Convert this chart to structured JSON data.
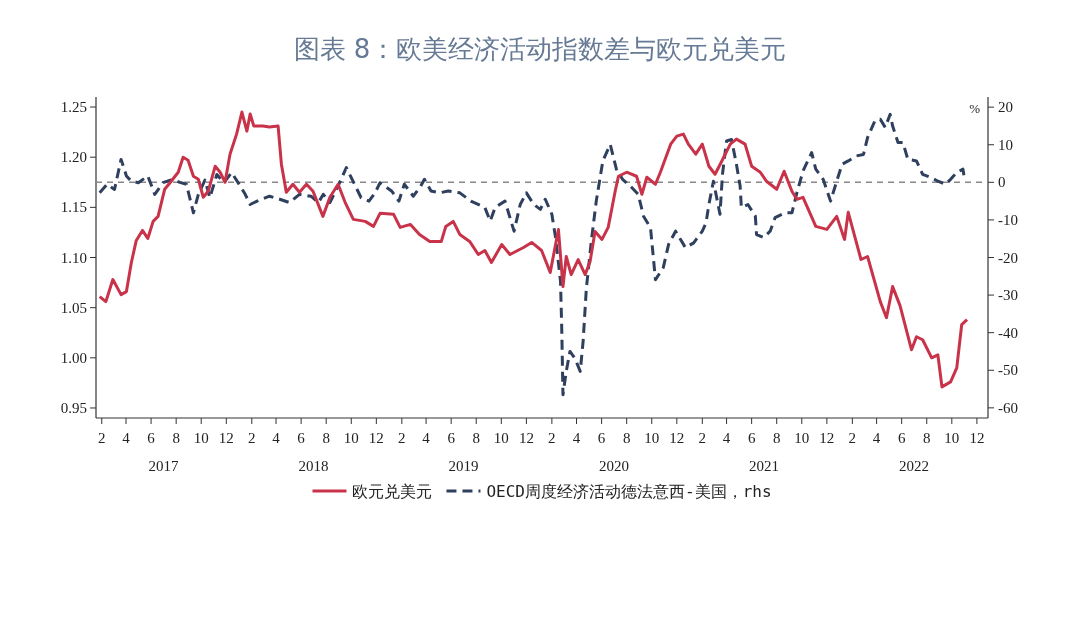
{
  "chart_data": {
    "type": "line",
    "title": "图表 8：欧美经济活动指数差与欧元兑美元",
    "y2label": "%",
    "legend": "bottom",
    "xlim": [
      "2017-01-18",
      "2022-12-28"
    ],
    "ylim": [
      0.94,
      1.26
    ],
    "y2lim": [
      -62.7,
      22.7
    ],
    "yticks": [
      0.95,
      {
        "value": 1.0,
        "label": "1.00"
      },
      1.05,
      {
        "value": 1.1,
        "label": "1.10"
      },
      1.15,
      {
        "value": 1.2,
        "label": "1.20"
      },
      1.25
    ],
    "y2ticks": [
      -60,
      -50,
      -40,
      -30,
      -20,
      -10,
      0,
      10,
      20
    ],
    "xticks": [
      {
        "value": "2017-02-01",
        "label": "2"
      },
      {
        "value": "2017-04-01",
        "label": "4"
      },
      {
        "value": "2017-06-01",
        "label": "6"
      },
      {
        "value": "2017-08-01",
        "label": "8"
      },
      {
        "value": "2017-10-01",
        "label": "10"
      },
      {
        "value": "2017-12-01",
        "label": "12"
      },
      {
        "value": "2018-02-01",
        "label": "2"
      },
      {
        "value": "2018-04-01",
        "label": "4"
      },
      {
        "value": "2018-06-01",
        "label": "6"
      },
      {
        "value": "2018-08-01",
        "label": "8"
      },
      {
        "value": "2018-10-01",
        "label": "10"
      },
      {
        "value": "2018-12-01",
        "label": "12"
      },
      {
        "value": "2019-02-01",
        "label": "2"
      },
      {
        "value": "2019-04-01",
        "label": "4"
      },
      {
        "value": "2019-06-01",
        "label": "6"
      },
      {
        "value": "2019-08-01",
        "label": "8"
      },
      {
        "value": "2019-10-01",
        "label": "10"
      },
      {
        "value": "2019-12-01",
        "label": "12"
      },
      {
        "value": "2020-02-01",
        "label": "2"
      },
      {
        "value": "2020-04-01",
        "label": "4"
      },
      {
        "value": "2020-06-01",
        "label": "6"
      },
      {
        "value": "2020-08-01",
        "label": "8"
      },
      {
        "value": "2020-10-01",
        "label": "10"
      },
      {
        "value": "2020-12-01",
        "label": "12"
      },
      {
        "value": "2021-02-01",
        "label": "2"
      },
      {
        "value": "2021-04-01",
        "label": "4"
      },
      {
        "value": "2021-06-01",
        "label": "6"
      },
      {
        "value": "2021-08-01",
        "label": "8"
      },
      {
        "value": "2021-10-01",
        "label": "10"
      },
      {
        "value": "2021-12-01",
        "label": "12"
      },
      {
        "value": "2022-02-01",
        "label": "2"
      },
      {
        "value": "2022-04-01",
        "label": "4"
      },
      {
        "value": "2022-06-01",
        "label": "6"
      },
      {
        "value": "2022-08-01",
        "label": "8"
      },
      {
        "value": "2022-10-01",
        "label": "10"
      },
      {
        "value": "2022-12-01",
        "label": "12"
      }
    ],
    "x2lim": [
      "2017-01-18",
      "2022-12-28"
    ],
    "x2ticks": [
      {
        "value": "2017-07-01",
        "label": "2017"
      },
      {
        "value": "2018-07-01",
        "label": "2018"
      },
      {
        "value": "2019-07-01",
        "label": "2019"
      },
      {
        "value": "2020-07-01",
        "label": "2020"
      },
      {
        "value": "2021-07-01",
        "label": "2021"
      },
      {
        "value": "2022-07-01",
        "label": "2022"
      }
    ],
    "ref_lines": [
      {
        "axis": "y2",
        "value": 0,
        "color": "#888888",
        "line_style": "dashed"
      }
    ],
    "series": [
      {
        "name": "欧元兑美元",
        "color": "#c8334a",
        "line_style": "solid",
        "x": [
          "2017-01-27",
          "2017-02-11",
          "2017-02-28",
          "2017-03-20",
          "2017-04-02",
          "2017-04-14",
          "2017-04-26",
          "2017-05-11",
          "2017-05-24",
          "2017-06-06",
          "2017-06-18",
          "2017-07-04",
          "2017-07-20",
          "2017-08-06",
          "2017-08-18",
          "2017-08-30",
          "2017-09-12",
          "2017-09-24",
          "2017-10-06",
          "2017-10-18",
          "2017-11-04",
          "2017-11-16",
          "2017-11-28",
          "2017-12-10",
          "2017-12-26",
          "2018-01-08",
          "2018-01-20",
          "2018-01-28",
          "2018-02-06",
          "2018-02-28",
          "2018-03-16",
          "2018-04-06",
          "2018-04-14",
          "2018-04-26",
          "2018-05-12",
          "2018-05-28",
          "2018-06-14",
          "2018-06-30",
          "2018-07-24",
          "2018-08-10",
          "2018-08-30",
          "2018-09-16",
          "2018-10-06",
          "2018-11-04",
          "2018-11-24",
          "2018-12-10",
          "2019-01-12",
          "2019-01-28",
          "2019-02-22",
          "2019-03-16",
          "2019-04-10",
          "2019-05-08",
          "2019-05-19",
          "2019-06-06",
          "2019-06-22",
          "2019-07-16",
          "2019-08-06",
          "2019-08-22",
          "2019-09-07",
          "2019-10-02",
          "2019-10-22",
          "2019-11-24",
          "2019-12-14",
          "2020-01-07",
          "2020-01-28",
          "2020-02-17",
          "2020-02-28",
          "2020-03-07",
          "2020-03-19",
          "2020-04-05",
          "2020-04-22",
          "2020-05-04",
          "2020-05-16",
          "2020-06-02",
          "2020-06-17",
          "2020-07-04",
          "2020-07-12",
          "2020-08-01",
          "2020-08-25",
          "2020-09-07",
          "2020-09-19",
          "2020-10-10",
          "2020-10-22",
          "2020-11-16",
          "2020-12-01",
          "2020-12-17",
          "2020-12-29",
          "2021-01-16",
          "2021-02-01",
          "2021-02-17",
          "2021-03-04",
          "2021-03-19",
          "2021-04-10",
          "2021-04-25",
          "2021-05-16",
          "2021-06-01",
          "2021-06-22",
          "2021-07-07",
          "2021-08-01",
          "2021-08-19",
          "2021-09-07",
          "2021-09-19",
          "2021-10-04",
          "2021-11-04",
          "2021-12-01",
          "2021-12-25",
          "2022-01-13",
          "2022-01-22",
          "2022-02-22",
          "2022-03-10",
          "2022-04-10",
          "2022-04-25",
          "2022-05-10",
          "2022-05-28",
          "2022-06-25",
          "2022-07-07",
          "2022-07-22",
          "2022-08-13",
          "2022-08-28",
          "2022-09-07",
          "2022-09-28",
          "2022-10-13",
          "2022-10-25",
          "2022-11-07"
        ],
        "values": [
          1.061,
          1.056,
          1.078,
          1.063,
          1.066,
          1.095,
          1.117,
          1.127,
          1.119,
          1.136,
          1.141,
          1.168,
          1.176,
          1.185,
          1.2,
          1.197,
          1.181,
          1.178,
          1.16,
          1.166,
          1.191,
          1.185,
          1.175,
          1.203,
          1.223,
          1.245,
          1.226,
          1.243,
          1.231,
          1.231,
          1.23,
          1.231,
          1.193,
          1.165,
          1.173,
          1.165,
          1.173,
          1.166,
          1.141,
          1.16,
          1.173,
          1.155,
          1.138,
          1.136,
          1.131,
          1.144,
          1.143,
          1.13,
          1.133,
          1.123,
          1.116,
          1.116,
          1.131,
          1.136,
          1.123,
          1.116,
          1.103,
          1.107,
          1.095,
          1.113,
          1.103,
          1.11,
          1.115,
          1.107,
          1.085,
          1.128,
          1.071,
          1.101,
          1.083,
          1.098,
          1.083,
          1.096,
          1.126,
          1.118,
          1.13,
          1.166,
          1.181,
          1.185,
          1.181,
          1.163,
          1.18,
          1.173,
          1.185,
          1.213,
          1.221,
          1.223,
          1.213,
          1.203,
          1.213,
          1.191,
          1.183,
          1.195,
          1.213,
          1.218,
          1.213,
          1.191,
          1.185,
          1.176,
          1.168,
          1.186,
          1.166,
          1.158,
          1.16,
          1.131,
          1.128,
          1.141,
          1.118,
          1.145,
          1.098,
          1.101,
          1.056,
          1.04,
          1.071,
          1.052,
          1.008,
          1.021,
          1.018,
          1.0,
          1.003,
          0.971,
          0.976,
          0.99,
          1.033,
          1.038
        ]
      },
      {
        "name": "OECD周度经济活动德法意西-美国，rhs",
        "color": "#2f3f5e",
        "line_style": "dashed",
        "axis": "y2",
        "x": [
          "2017-01-27",
          "2017-02-14",
          "2017-03-04",
          "2017-03-20",
          "2017-04-02",
          "2017-04-14",
          "2017-05-01",
          "2017-05-24",
          "2017-06-10",
          "2017-06-30",
          "2017-07-24",
          "2017-08-10",
          "2017-08-26",
          "2017-09-12",
          "2017-09-24",
          "2017-10-10",
          "2017-10-22",
          "2017-11-08",
          "2017-11-25",
          "2017-12-14",
          "2018-01-04",
          "2018-01-16",
          "2018-01-28",
          "2018-02-14",
          "2018-03-16",
          "2018-04-10",
          "2018-05-04",
          "2018-05-28",
          "2018-06-25",
          "2018-07-13",
          "2018-07-25",
          "2018-08-10",
          "2018-09-01",
          "2018-09-19",
          "2018-10-07",
          "2018-10-25",
          "2018-11-13",
          "2018-11-28",
          "2018-12-10",
          "2019-01-07",
          "2019-01-25",
          "2019-02-07",
          "2019-03-01",
          "2019-03-19",
          "2019-03-28",
          "2019-04-13",
          "2019-05-04",
          "2019-05-25",
          "2019-06-22",
          "2019-07-19",
          "2019-08-22",
          "2019-09-04",
          "2019-09-16",
          "2019-10-10",
          "2019-11-01",
          "2019-11-16",
          "2019-12-01",
          "2019-12-19",
          "2020-01-04",
          "2020-01-16",
          "2020-02-01",
          "2020-02-10",
          "2020-02-22",
          "2020-02-25",
          "2020-02-28",
          "2020-03-07",
          "2020-03-16",
          "2020-03-28",
          "2020-04-10",
          "2020-04-17",
          "2020-04-25",
          "2020-05-07",
          "2020-05-19",
          "2020-06-04",
          "2020-06-22",
          "2020-07-07",
          "2020-07-22",
          "2020-08-10",
          "2020-08-29",
          "2020-09-11",
          "2020-09-28",
          "2020-10-10",
          "2020-10-29",
          "2020-11-11",
          "2020-11-28",
          "2020-12-22",
          "2021-01-11",
          "2021-02-01",
          "2021-02-10",
          "2021-02-17",
          "2021-02-28",
          "2021-03-16",
          "2021-03-22",
          "2021-04-01",
          "2021-04-13",
          "2021-04-25",
          "2021-05-04",
          "2021-05-07",
          "2021-05-23",
          "2021-06-10",
          "2021-06-13",
          "2021-06-30",
          "2021-07-16",
          "2021-07-28",
          "2021-08-22",
          "2021-09-07",
          "2021-09-19",
          "2021-10-04",
          "2021-10-25",
          "2021-11-04",
          "2021-11-22",
          "2021-12-10",
          "2021-12-25",
          "2022-01-07",
          "2022-01-22",
          "2022-02-10",
          "2022-02-28",
          "2022-03-10",
          "2022-03-28",
          "2022-04-10",
          "2022-04-22",
          "2022-05-04",
          "2022-05-10",
          "2022-05-23",
          "2022-06-04",
          "2022-06-16",
          "2022-07-07",
          "2022-07-22",
          "2022-08-13",
          "2022-08-28",
          "2022-09-16",
          "2022-09-28",
          "2022-10-13",
          "2022-10-28",
          "2022-11-01"
        ],
        "values": [
          -2.8,
          -0.5,
          -1.9,
          6.1,
          1.7,
          0.3,
          -0.1,
          1.7,
          -3.2,
          -0.1,
          0.8,
          0,
          -0.5,
          -8.1,
          -3.2,
          0.6,
          -4.1,
          2.1,
          -0.1,
          2.6,
          -1,
          -3.2,
          -5.9,
          -5,
          -3.7,
          -4.5,
          -5.4,
          -3.2,
          -3.7,
          -5.4,
          -3.2,
          -5.4,
          -0.5,
          3.9,
          -0.1,
          -4.1,
          -5,
          -2.8,
          -0.1,
          -2.3,
          -5,
          -0.5,
          -3.7,
          -1,
          0.8,
          -2.3,
          -2.8,
          -2.3,
          -2.8,
          -5,
          -6.7,
          -10.3,
          -6.7,
          -5,
          -13,
          -5.9,
          -2.8,
          -5.9,
          -7.2,
          -4.5,
          -8.5,
          -14.7,
          -26.3,
          -38.7,
          -56.5,
          -50.3,
          -45,
          -46.8,
          -50.3,
          -42.3,
          -28.1,
          -15.6,
          -5,
          5.7,
          10.1,
          3.5,
          0.8,
          -1,
          -3.2,
          -9,
          -12.1,
          -25.9,
          -22.7,
          -16.5,
          -13,
          -17.4,
          -16.1,
          -13,
          -10.8,
          -5.9,
          0.3,
          -8.5,
          2.1,
          11,
          11.4,
          4.8,
          -1,
          -6.7,
          -5.9,
          -9,
          -13.9,
          -14.7,
          -13,
          -9.4,
          -8.1,
          -8.1,
          -2.8,
          3,
          7.9,
          3.5,
          0.8,
          -5,
          0.3,
          4.8,
          5.7,
          7,
          7.4,
          11.9,
          16.4,
          16.8,
          14.6,
          18.1,
          15,
          10.6,
          10.6,
          6.1,
          5.7,
          2.1,
          1.2,
          0.3,
          -0.5,
          0.8,
          2.6,
          3.5,
          0.8
        ]
      }
    ]
  }
}
